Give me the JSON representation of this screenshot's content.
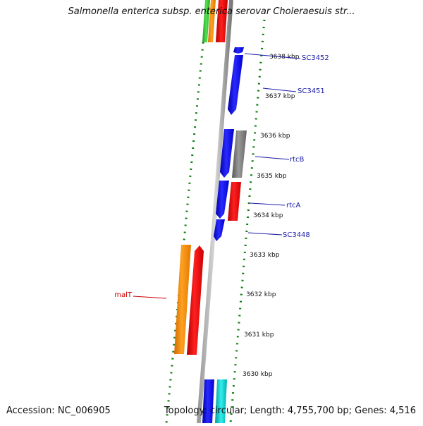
{
  "title": "Salmonella enterica subsp. enterica serovar Choleraesuis str...",
  "footer": {
    "accession": "Accession: NC_006905",
    "summary": "Topology: circular; Length: 4,755,700 bp; Genes: 4,516"
  },
  "colors": {
    "forward_blue": "#0000ee",
    "red": "#ee0000",
    "orange": "#ff8c00",
    "gray": "#808080",
    "green": "#33cc33",
    "cyan": "#00cccc",
    "tick_green": "#0a7a0a",
    "label_blue": "#1a1aa6",
    "label_red": "#cc0000"
  },
  "scale_labels": [
    "3638 kbp",
    "3637 kbp",
    "3636 kbp",
    "3635 kbp",
    "3634 kbp",
    "3633 kbp",
    "3632 kbp",
    "3631 kbp",
    "3630 kbp"
  ],
  "gene_labels": [
    {
      "name": "SC3452",
      "color": "label_blue"
    },
    {
      "name": "SC3451",
      "color": "label_blue"
    },
    {
      "name": "rtcB",
      "color": "label_blue"
    },
    {
      "name": "rtcA",
      "color": "label_blue"
    },
    {
      "name": "SC3448",
      "color": "label_blue"
    },
    {
      "name": "malT",
      "color": "label_red"
    }
  ]
}
